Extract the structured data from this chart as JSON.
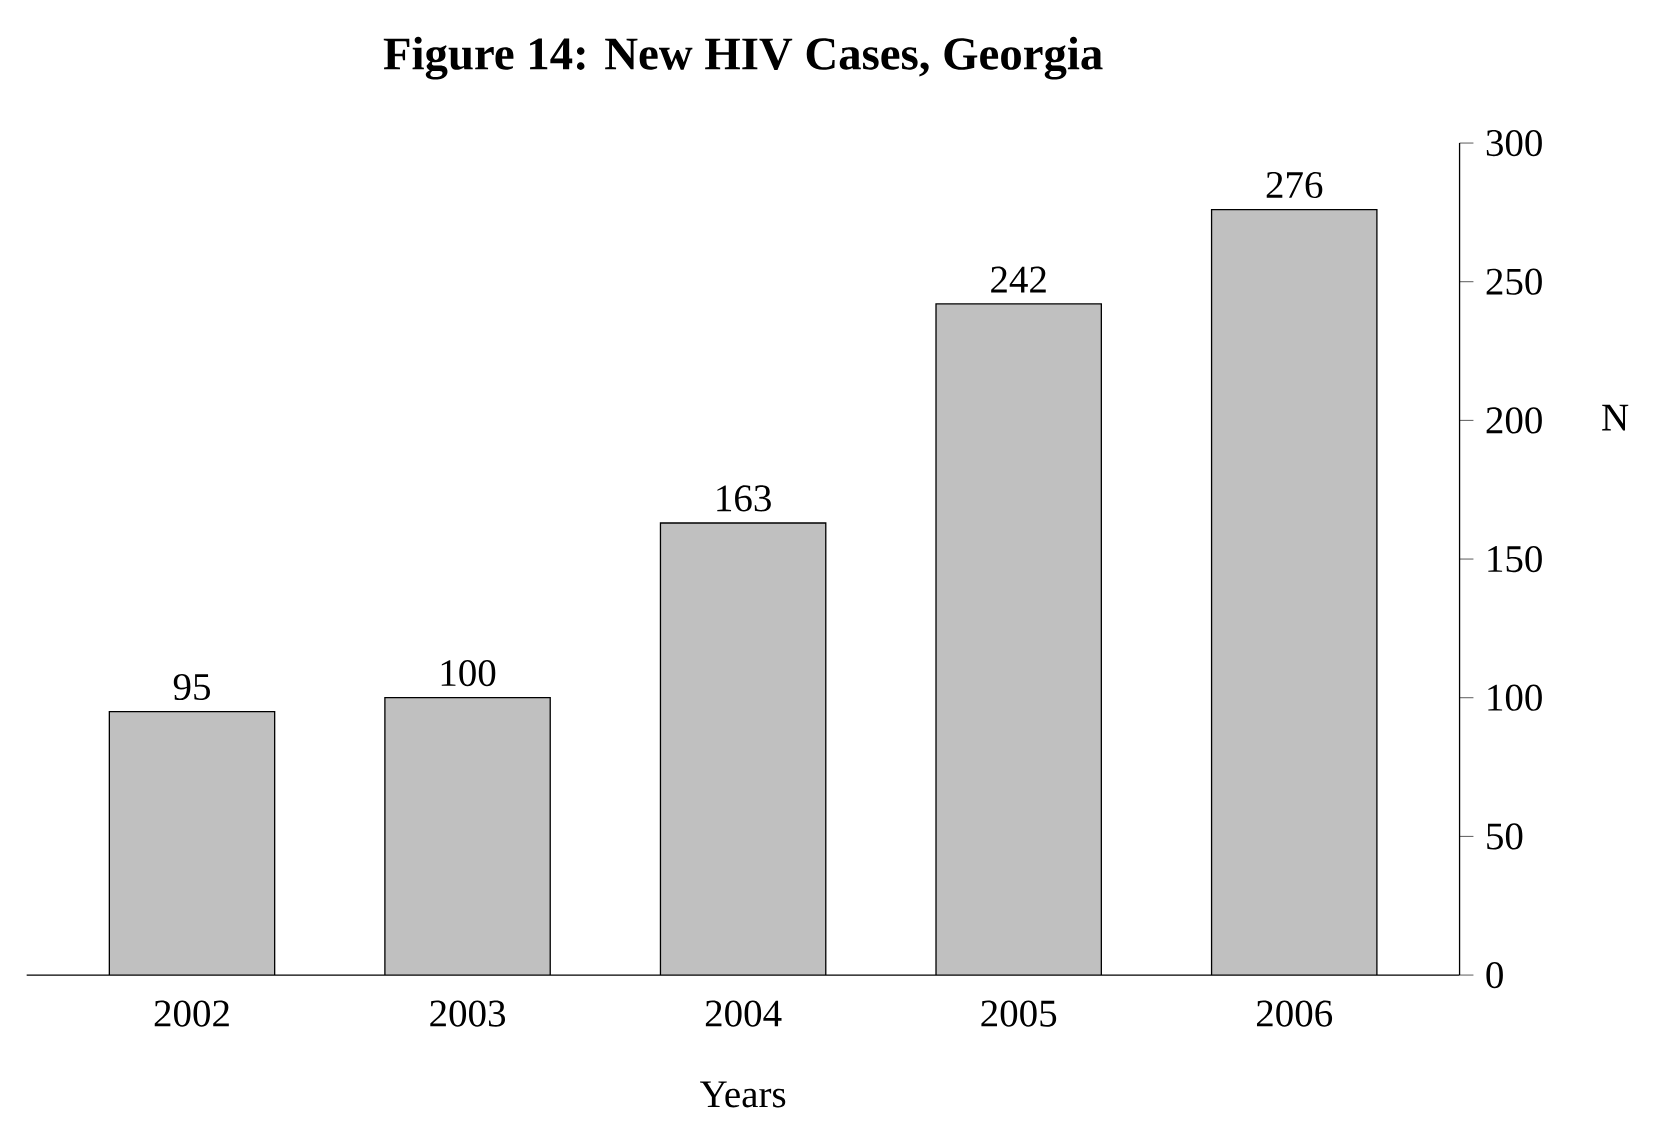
{
  "chart_data": {
    "type": "bar",
    "title": "Figure 14: New HIV Cases, Georgia",
    "xlabel": "Years",
    "ylabel": "N",
    "categories": [
      "2002",
      "2003",
      "2004",
      "2005",
      "2006"
    ],
    "values": [
      95,
      100,
      163,
      242,
      276
    ],
    "color": "#c0c0c0",
    "ylim": [
      0,
      300
    ],
    "yticks": [
      0,
      50,
      100,
      150,
      200,
      250,
      300
    ],
    "data_labels": true,
    "grid": false
  }
}
